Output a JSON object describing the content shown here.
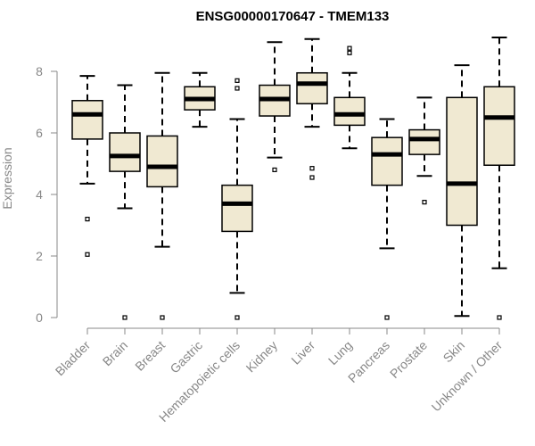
{
  "chart_data": {
    "type": "boxplot",
    "title": "ENSG00000170647 - TMEM133",
    "xlabel": "",
    "ylabel": "Expression",
    "ylim": [
      0,
      9.2
    ],
    "yticks": [
      0,
      2,
      4,
      6,
      8
    ],
    "box_fill": "#f0e9d2",
    "stroke": "#000000",
    "categories": [
      "Bladder",
      "Brain",
      "Breast",
      "Gastric",
      "Hematopoietic cells",
      "Kidney",
      "Liver",
      "Lung",
      "Pancreas",
      "Prostate",
      "Skin",
      "Unknown / Other"
    ],
    "boxes": [
      {
        "low": 4.35,
        "q1": 5.8,
        "median": 6.6,
        "q3": 7.05,
        "high": 7.85,
        "outliers": [
          3.2,
          2.05
        ]
      },
      {
        "low": 3.55,
        "q1": 4.75,
        "median": 5.25,
        "q3": 6.0,
        "high": 7.55,
        "outliers": [
          0.0
        ]
      },
      {
        "low": 2.3,
        "q1": 4.25,
        "median": 4.9,
        "q3": 5.9,
        "high": 7.95,
        "outliers": [
          0.0
        ]
      },
      {
        "low": 6.2,
        "q1": 6.75,
        "median": 7.1,
        "q3": 7.5,
        "high": 7.95,
        "outliers": []
      },
      {
        "low": 0.8,
        "q1": 2.8,
        "median": 3.7,
        "q3": 4.3,
        "high": 6.45,
        "outliers": [
          7.7,
          7.45,
          0.0
        ]
      },
      {
        "low": 5.2,
        "q1": 6.55,
        "median": 7.1,
        "q3": 7.55,
        "high": 8.95,
        "outliers": [
          4.8
        ]
      },
      {
        "low": 6.2,
        "q1": 6.95,
        "median": 7.6,
        "q3": 7.95,
        "high": 9.05,
        "outliers": [
          4.85,
          4.55
        ]
      },
      {
        "low": 5.5,
        "q1": 6.25,
        "median": 6.6,
        "q3": 7.15,
        "high": 7.95,
        "outliers": [
          8.75,
          8.6
        ]
      },
      {
        "low": 2.25,
        "q1": 4.3,
        "median": 5.3,
        "q3": 5.85,
        "high": 6.45,
        "outliers": [
          0.0
        ]
      },
      {
        "low": 4.6,
        "q1": 5.3,
        "median": 5.8,
        "q3": 6.1,
        "high": 7.15,
        "outliers": [
          3.75
        ]
      },
      {
        "low": 0.05,
        "q1": 3.0,
        "median": 4.35,
        "q3": 7.15,
        "high": 8.2,
        "outliers": []
      },
      {
        "low": 1.6,
        "q1": 4.95,
        "median": 6.5,
        "q3": 7.5,
        "high": 9.1,
        "outliers": [
          0.0
        ]
      }
    ]
  }
}
